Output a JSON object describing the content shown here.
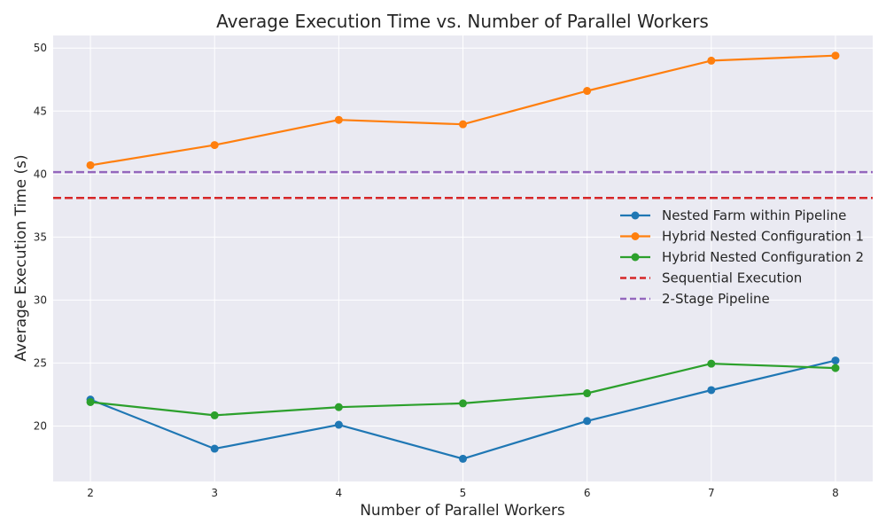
{
  "chart_data": {
    "type": "line",
    "title": "Average Execution Time vs. Number of Parallel Workers",
    "xlabel": "Number of Parallel Workers",
    "ylabel": "Average Execution Time (s)",
    "x": [
      2,
      3,
      4,
      5,
      6,
      7,
      8
    ],
    "xticks": [
      2,
      3,
      4,
      5,
      6,
      7,
      8
    ],
    "yticks": [
      20,
      25,
      30,
      35,
      40,
      45,
      50
    ],
    "xlim": [
      1.7,
      8.3
    ],
    "ylim": [
      15.6,
      51.0
    ],
    "grid": true,
    "legend_position": "center-right",
    "series": [
      {
        "name": "Nested Farm within Pipeline",
        "color": "#1f77b4",
        "style": "line-marker",
        "values": [
          22.1,
          18.2,
          20.1,
          17.4,
          20.4,
          22.85,
          25.2
        ]
      },
      {
        "name": "Hybrid Nested Configuration 1",
        "color": "#ff7f0e",
        "style": "line-marker",
        "values": [
          40.7,
          42.3,
          44.3,
          43.95,
          46.6,
          49.0,
          49.4
        ]
      },
      {
        "name": "Hybrid Nested Configuration 2",
        "color": "#2ca02c",
        "style": "line-marker",
        "values": [
          21.9,
          20.85,
          21.5,
          21.8,
          22.6,
          24.95,
          24.6
        ]
      },
      {
        "name": "Sequential Execution",
        "color": "#d62728",
        "style": "hline-dashed",
        "value": 38.1
      },
      {
        "name": "2-Stage Pipeline",
        "color": "#9467bd",
        "style": "hline-dashed",
        "value": 40.15
      }
    ]
  }
}
